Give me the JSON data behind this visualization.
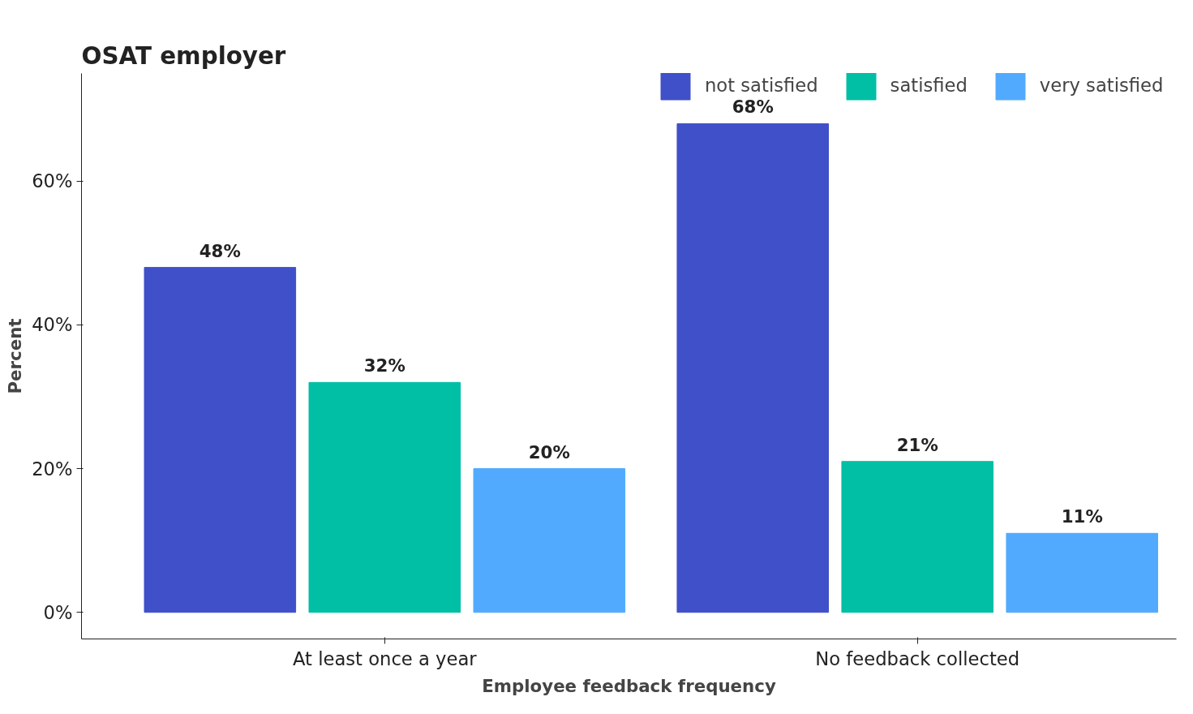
{
  "chart_data": {
    "type": "bar",
    "title": "OSAT employer",
    "xlabel": "Employee feedback frequency",
    "ylabel": "Percent",
    "categories": [
      "At least once a year",
      "No feedback collected"
    ],
    "series": [
      {
        "name": "not satisfied",
        "color": "#4050c8",
        "values": [
          48,
          68
        ],
        "value_labels": [
          "48%",
          "68%"
        ]
      },
      {
        "name": "satisfied",
        "color": "#00bfa5",
        "values": [
          32,
          21
        ],
        "value_labels": [
          "32%",
          "21%"
        ]
      },
      {
        "name": "very satisfied",
        "color": "#52aaff",
        "values": [
          20,
          11
        ],
        "value_labels": [
          "20%",
          "11%"
        ]
      }
    ],
    "ylim": [
      -3.7,
      75
    ],
    "yticks": [
      {
        "value": 0,
        "label": "0%"
      },
      {
        "value": 20,
        "label": "20%"
      },
      {
        "value": 40,
        "label": "40%"
      },
      {
        "value": 60,
        "label": "60%"
      }
    ],
    "data_labels": true,
    "legend": "top right",
    "grid": false
  }
}
